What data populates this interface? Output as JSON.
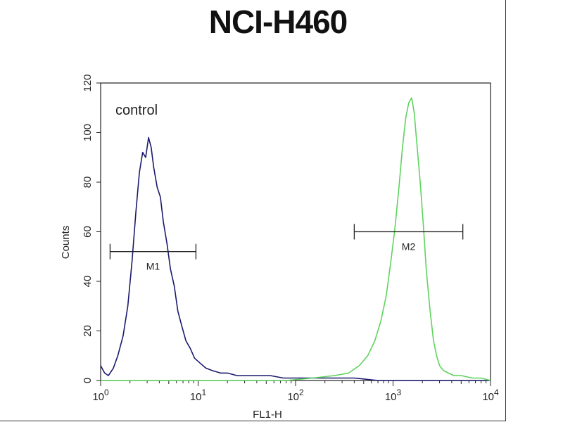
{
  "chart_data": {
    "type": "histogram",
    "title": "NCI-H460",
    "xlabel": "FL1-H",
    "ylabel": "Counts",
    "x_scale": "log",
    "xlim": [
      1,
      10000
    ],
    "ylim": [
      0,
      120
    ],
    "x_ticks": [
      {
        "value": 1,
        "base": "10",
        "exp": "0"
      },
      {
        "value": 10,
        "base": "10",
        "exp": "1"
      },
      {
        "value": 100,
        "base": "10",
        "exp": "2"
      },
      {
        "value": 1000,
        "base": "10",
        "exp": "3"
      },
      {
        "value": 10000,
        "base": "10",
        "exp": "4"
      }
    ],
    "y_ticks": [
      0,
      20,
      40,
      60,
      80,
      100,
      120
    ],
    "annotation": "control",
    "series": [
      {
        "color": "#1a1a6e",
        "x": [
          1.0,
          1.1,
          1.2,
          1.35,
          1.5,
          1.7,
          1.9,
          2.1,
          2.3,
          2.5,
          2.7,
          2.9,
          3.1,
          3.3,
          3.5,
          3.8,
          4.1,
          4.4,
          4.8,
          5.2,
          5.7,
          6.2,
          6.8,
          7.5,
          8.3,
          9.2,
          10.5,
          12,
          14,
          17,
          20,
          25,
          32,
          40,
          55,
          75,
          100,
          150,
          250,
          400,
          700,
          1000,
          2000,
          5000,
          10000
        ],
        "values": [
          6,
          3,
          2,
          5,
          10,
          18,
          30,
          48,
          68,
          84,
          92,
          90,
          98,
          94,
          86,
          78,
          74,
          64,
          55,
          45,
          38,
          28,
          22,
          16,
          13,
          9,
          7,
          5,
          4,
          3,
          3,
          2,
          2,
          2,
          2,
          1,
          1,
          1,
          1,
          1,
          0,
          0,
          0,
          0,
          0
        ]
      },
      {
        "color": "#5fd35f",
        "x": [
          1.0,
          3,
          10,
          30,
          80,
          150,
          250,
          350,
          450,
          550,
          650,
          750,
          850,
          950,
          1050,
          1150,
          1250,
          1350,
          1450,
          1550,
          1650,
          1750,
          1900,
          2050,
          2200,
          2400,
          2600,
          2800,
          3000,
          3300,
          3700,
          4200,
          5000,
          6500,
          8000,
          10000
        ],
        "values": [
          0,
          0,
          0,
          0,
          0,
          1,
          2,
          3,
          6,
          10,
          16,
          24,
          34,
          48,
          62,
          78,
          94,
          106,
          112,
          114,
          108,
          96,
          80,
          62,
          44,
          28,
          16,
          10,
          6,
          4,
          3,
          2,
          2,
          1,
          1,
          0
        ]
      }
    ],
    "gates": [
      {
        "label": "M1",
        "x_start": 1.25,
        "x_end": 9.5,
        "y": 52
      },
      {
        "label": "M2",
        "x_start": 400,
        "x_end": 5200,
        "y": 60
      }
    ]
  }
}
